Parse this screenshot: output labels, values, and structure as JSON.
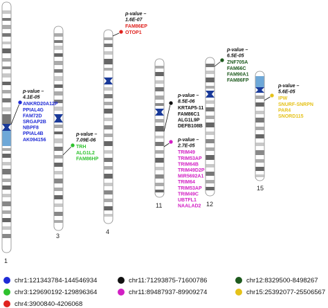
{
  "chromosomes": [
    {
      "label": "1"
    },
    {
      "label": "3"
    },
    {
      "label": "4"
    },
    {
      "label": "11"
    },
    {
      "label": "12"
    },
    {
      "label": "15"
    }
  ],
  "annotations": [
    {
      "id": "chr1",
      "pvalue": "p-value –",
      "pvalue2": "4.1E-05",
      "color": "#1f2bd6",
      "genes": [
        "ANKRD20A12P",
        "PPIAL4G",
        "FAM72D",
        "SRGAP2B",
        "NBPF8",
        "PPIAL4B",
        "AK094156"
      ]
    },
    {
      "id": "chr3",
      "pvalue": "p-value –",
      "pvalue2": "7.09E-06",
      "color": "#2ec22e",
      "genes": [
        "TRH",
        "ALG1L2",
        "FAM86HP"
      ]
    },
    {
      "id": "chr4",
      "pvalue": "p-value –",
      "pvalue2": "1.6E-07",
      "color": "#e0231f",
      "genes": [
        "FAM86EP",
        "OTOP1"
      ]
    },
    {
      "id": "chr11a",
      "pvalue": "p-value –",
      "pvalue2": "8.5E-06",
      "color": "#111111",
      "genes": [
        "KRTAP5-11",
        "FAM86C1",
        "ALG1L9P",
        "DEFB108B"
      ]
    },
    {
      "id": "chr11b",
      "pvalue": "p-value –",
      "pvalue2": "2.7E-05",
      "color": "#d21fc4",
      "genes": [
        "TRIM49",
        "TRIM53AP",
        "TRIM64B",
        "TRIM49D2P",
        "MIR5692A1",
        "TRIM64",
        "TRIM53AP",
        "TRIM49C",
        "UBTFL1",
        "NAALAD2"
      ]
    },
    {
      "id": "chr12",
      "pvalue": "p-value –",
      "pvalue2": "6.5E-05",
      "color": "#1e5a1e",
      "genes": [
        "ZNF705A",
        "FAM66C",
        "FAM90A1",
        "FAM86FP"
      ]
    },
    {
      "id": "chr15",
      "pvalue": "p-value –",
      "pvalue2": "5.6E-05",
      "color": "#e5c21a",
      "genes": [
        "IPW",
        "SNURF-SNRPN",
        "PAR4",
        "SNORD115"
      ]
    }
  ],
  "legend": [
    {
      "color": "#1f2bd6",
      "text": "chr1:121343784-144546934"
    },
    {
      "color": "#111111",
      "text": "chr11:71293875-71600786"
    },
    {
      "color": "#1e5a1e",
      "text": "chr12:8329500-8498267"
    },
    {
      "color": "#2ec22e",
      "text": "chr3:129690192-129896364"
    },
    {
      "color": "#d21fc4",
      "text": "chr11:89487937-89909274"
    },
    {
      "color": "#e5c21a",
      "text": "chr15:25392077-25506567"
    },
    {
      "color": "#e0231f",
      "text": "chr4:3900840-4206068"
    }
  ]
}
